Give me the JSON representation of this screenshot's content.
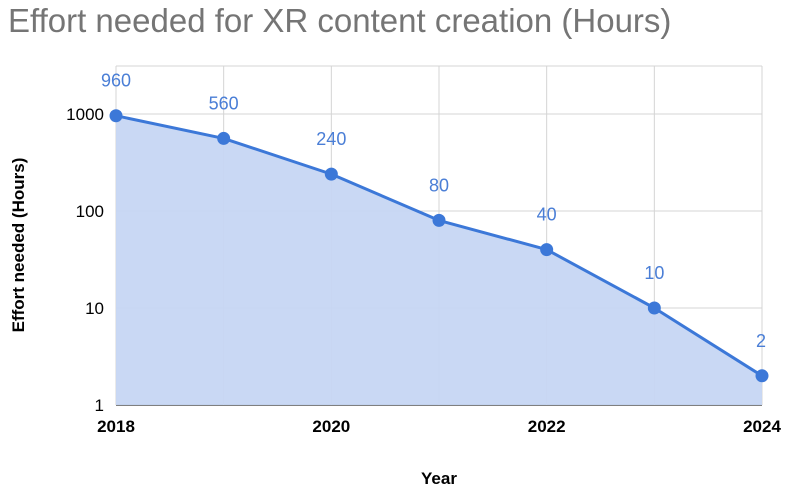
{
  "chart_data": {
    "type": "area",
    "title": "Effort needed for XR content creation (Hours)",
    "xlabel": "Year",
    "ylabel": "Effort needed (Hours)",
    "y_scale": "log",
    "ylim": [
      1,
      1000
    ],
    "xlim": [
      2018,
      2024
    ],
    "x_ticks": [
      "2018",
      "2020",
      "2022",
      "2024"
    ],
    "y_ticks": [
      "1",
      "10",
      "100",
      "1000"
    ],
    "grid": true,
    "legend": "none",
    "colors": {
      "line": "#3c78d8",
      "fill": "#c6d6f3",
      "label": "#4a7ed6"
    },
    "x": [
      2018,
      2019,
      2020,
      2021,
      2022,
      2023,
      2024
    ],
    "y": [
      960,
      560,
      240,
      80,
      40,
      10,
      2
    ],
    "data_labels": [
      "960",
      "560",
      "240",
      "80",
      "40",
      "10",
      "2"
    ]
  }
}
